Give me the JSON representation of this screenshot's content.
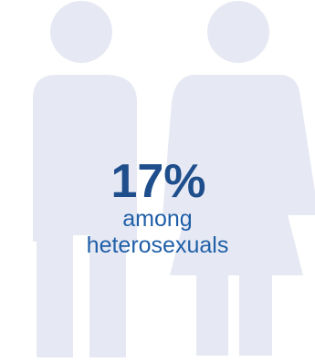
{
  "infographic": {
    "percentage": "17%",
    "label_line1": "among",
    "label_line2": "heterosexuals"
  },
  "colors": {
    "figure_fill": "#e6e9f3",
    "percentage_text": "#1f4e8c",
    "label_text": "#1f5fa8",
    "background": "#ffffff"
  },
  "icons": {
    "man": "man-figure-icon",
    "woman": "woman-figure-icon"
  }
}
